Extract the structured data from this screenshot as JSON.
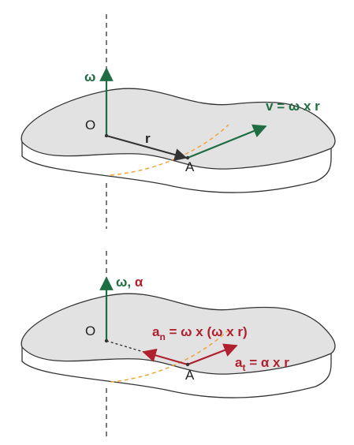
{
  "colors": {
    "green": "#1f6e43",
    "red": "#b0202e",
    "dark": "#333333",
    "disk_fill": "#e2e2e2",
    "orange_dash": "#f0a030"
  },
  "top": {
    "omega": "ω",
    "origin": "O",
    "r": "r",
    "point": "A",
    "v_lhs": "v",
    "v_rhs_eq": "= ω x ",
    "v_rhs_r": "r"
  },
  "bottom": {
    "omega": "ω,",
    "alpha": "α",
    "origin": "O",
    "point": "A",
    "an_a": "a",
    "an_sub": "n",
    "an_rest": " = ω x (ω x r)",
    "at_a": "a",
    "at_sub": "t",
    "at_rest": " = α x r"
  }
}
